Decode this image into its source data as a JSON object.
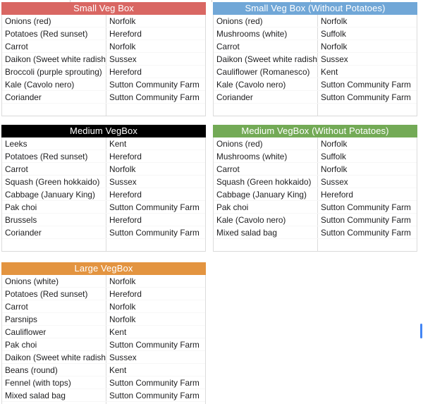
{
  "styles": {
    "header_text_color": "#ffffff",
    "gridline_color": "#dcdcdc",
    "body_text_color": "#1d1d1f"
  },
  "scrollbar": {
    "color": "#4285f4"
  },
  "tables": [
    {
      "title": "Small Veg Box",
      "header_color": "#d96763",
      "rows": [
        {
          "item": "Onions (red)",
          "source": "Norfolk"
        },
        {
          "item": "Potatoes (Red sunset)",
          "source": "Hereford"
        },
        {
          "item": "Carrot",
          "source": "Norfolk"
        },
        {
          "item": "Daikon (Sweet white radish)",
          "source": "Sussex"
        },
        {
          "item": "Broccoli (purple sprouting)",
          "source": "Hereford"
        },
        {
          "item": "Kale (Cavolo nero)",
          "source": "Sutton Community Farm"
        },
        {
          "item": "Coriander",
          "source": "Sutton Community Farm"
        }
      ]
    },
    {
      "title": "Small Veg Box (Without Potatoes)",
      "header_color": "#71a7d7",
      "rows": [
        {
          "item": "Onions (red)",
          "source": "Norfolk"
        },
        {
          "item": "Mushrooms (white)",
          "source": "Suffolk"
        },
        {
          "item": "Carrot",
          "source": "Norfolk"
        },
        {
          "item": "Daikon (Sweet white radish)",
          "source": "Sussex"
        },
        {
          "item": "Cauliflower (Romanesco)",
          "source": "Kent"
        },
        {
          "item": "Kale (Cavolo nero)",
          "source": "Sutton Community Farm"
        },
        {
          "item": "Coriander",
          "source": "Sutton Community Farm"
        }
      ]
    },
    {
      "title": "Medium VegBox",
      "header_color": "#000000",
      "rows": [
        {
          "item": "Leeks",
          "source": "Kent"
        },
        {
          "item": "Potatoes (Red sunset)",
          "source": "Hereford"
        },
        {
          "item": "Carrot",
          "source": "Norfolk"
        },
        {
          "item": "Squash (Green hokkaido)",
          "source": "Sussex"
        },
        {
          "item": "Cabbage (January King)",
          "source": "Hereford"
        },
        {
          "item": "Pak choi",
          "source": "Sutton Community Farm"
        },
        {
          "item": "Brussels",
          "source": "Hereford"
        },
        {
          "item": "Coriander",
          "source": "Sutton Community Farm"
        }
      ]
    },
    {
      "title": "Medium VegBox (Without Potatoes)",
      "header_color": "#73aa56",
      "rows": [
        {
          "item": "Onions (red)",
          "source": "Norfolk"
        },
        {
          "item": "Mushrooms (white)",
          "source": "Suffolk"
        },
        {
          "item": "Carrot",
          "source": "Norfolk"
        },
        {
          "item": "Squash (Green hokkaido)",
          "source": "Sussex"
        },
        {
          "item": "Cabbage (January King)",
          "source": "Hereford"
        },
        {
          "item": "Pak choi",
          "source": "Sutton Community Farm"
        },
        {
          "item": "Kale (Cavolo nero)",
          "source": "Sutton Community Farm"
        },
        {
          "item": "Mixed salad bag",
          "source": "Sutton Community Farm"
        }
      ]
    },
    {
      "title": "Large VegBox",
      "header_color": "#e39440",
      "rows": [
        {
          "item": "Onions (white)",
          "source": "Norfolk"
        },
        {
          "item": "Potatoes (Red sunset)",
          "source": "Hereford"
        },
        {
          "item": "Carrot",
          "source": "Norfolk"
        },
        {
          "item": "Parsnips",
          "source": "Norfolk"
        },
        {
          "item": "Cauliflower",
          "source": "Kent"
        },
        {
          "item": "Pak choi",
          "source": "Sutton Community Farm"
        },
        {
          "item": "Daikon (Sweet white radish)",
          "source": "Sussex"
        },
        {
          "item": "Beans (round)",
          "source": "Kent"
        },
        {
          "item": "Fennel (with tops)",
          "source": "Sutton Community Farm"
        },
        {
          "item": "Mixed salad bag",
          "source": "Sutton Community Farm"
        }
      ]
    }
  ]
}
